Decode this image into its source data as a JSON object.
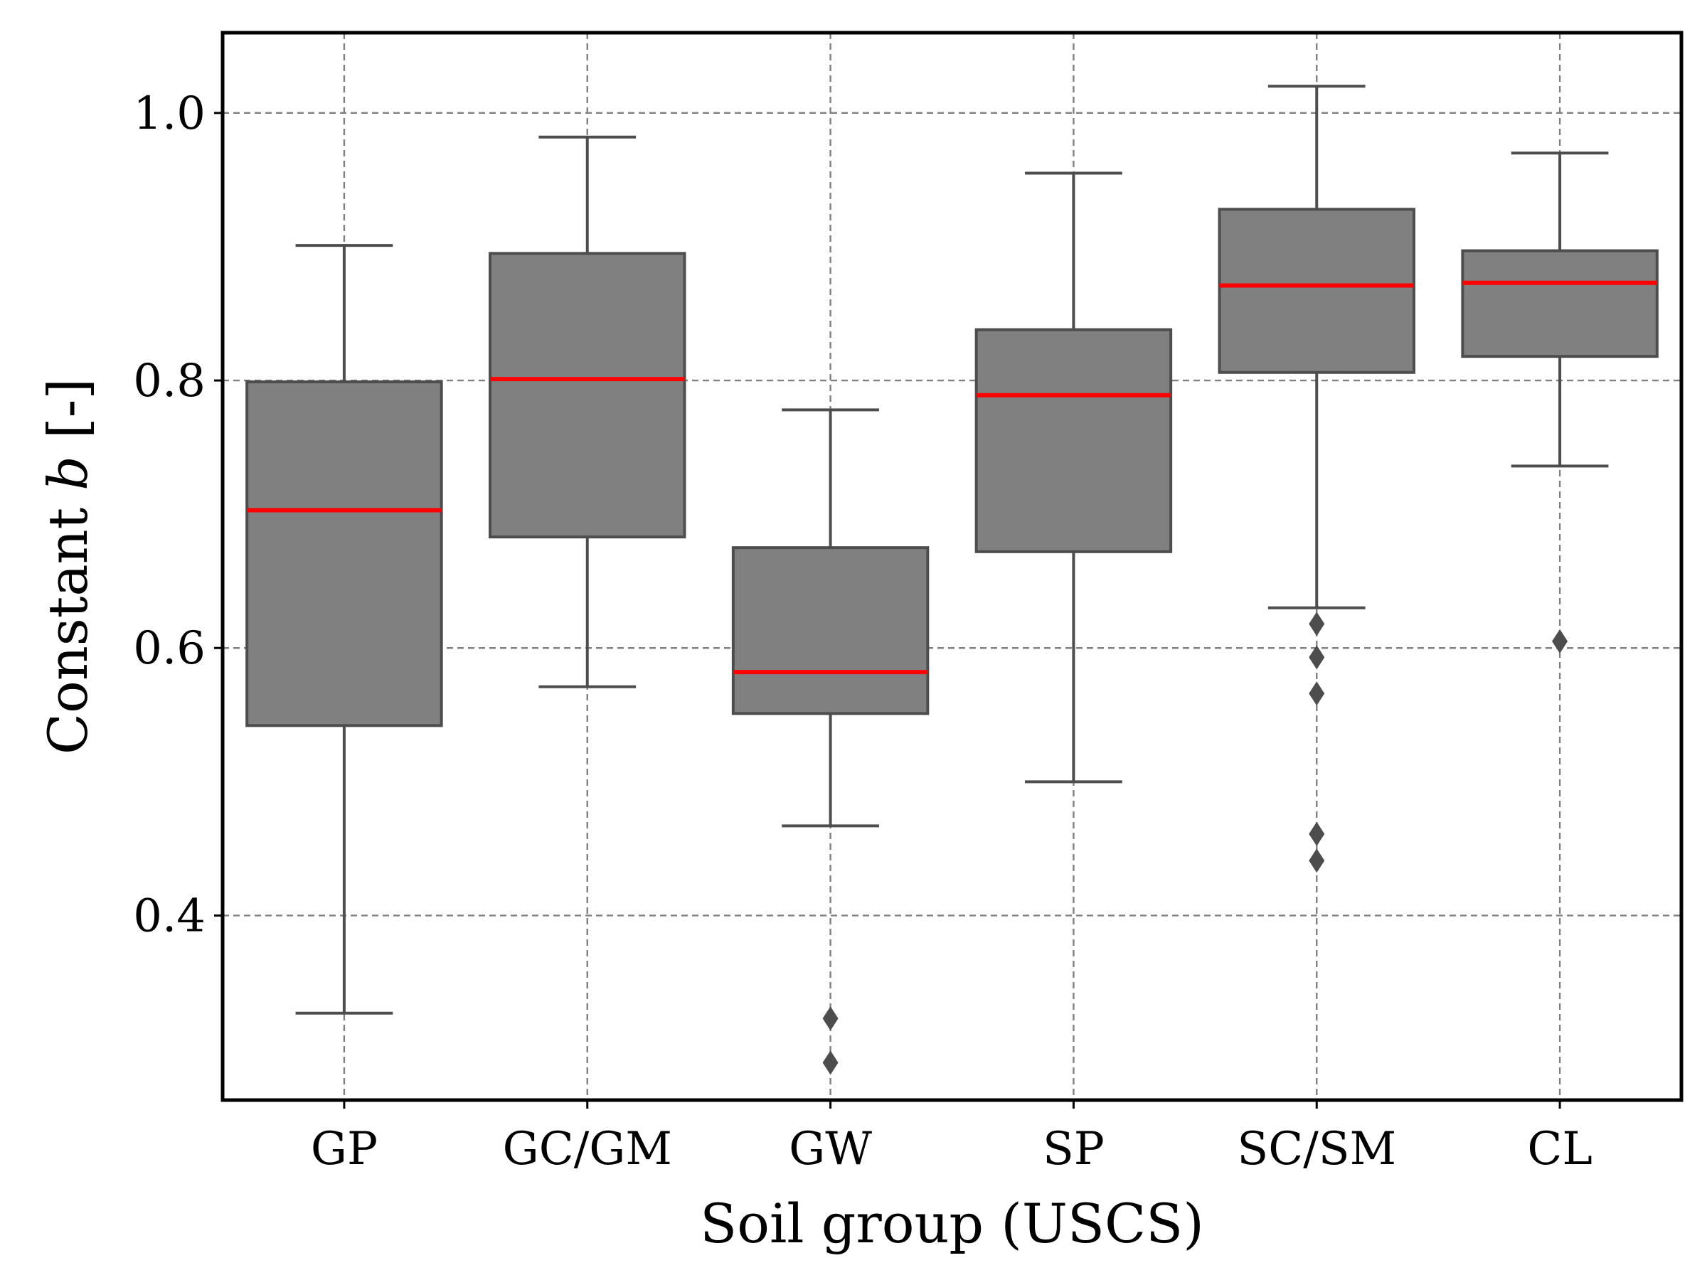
{
  "chart_data": {
    "type": "box",
    "xlabel": "Soil group (USCS)",
    "ylabel_prefix": "Constant ",
    "ylabel_var": "b",
    "ylabel_suffix": " [-]",
    "ylim": [
      0.262,
      1.06
    ],
    "yticks": [
      0.4,
      0.6,
      0.8,
      1.0
    ],
    "yticklabels": [
      "0.4",
      "0.6",
      "0.8",
      "1.0"
    ],
    "grid": true,
    "box_color": "#808080",
    "edge_color": "#4d4d4d",
    "median_color": "#ff0000",
    "categories": [
      "GP",
      "GC/GM",
      "GW",
      "SP",
      "SC/SM",
      "CL"
    ],
    "boxes": [
      {
        "category": "GP",
        "whisker_low": 0.327,
        "q1": 0.542,
        "median": 0.703,
        "q3": 0.799,
        "whisker_high": 0.901,
        "outliers": []
      },
      {
        "category": "GC/GM",
        "whisker_low": 0.571,
        "q1": 0.683,
        "median": 0.801,
        "q3": 0.895,
        "whisker_high": 0.982,
        "outliers": []
      },
      {
        "category": "GW",
        "whisker_low": 0.467,
        "q1": 0.551,
        "median": 0.582,
        "q3": 0.675,
        "whisker_high": 0.778,
        "outliers": [
          0.323,
          0.29
        ]
      },
      {
        "category": "SP",
        "whisker_low": 0.5,
        "q1": 0.672,
        "median": 0.789,
        "q3": 0.838,
        "whisker_high": 0.955,
        "outliers": []
      },
      {
        "category": "SC/SM",
        "whisker_low": 0.63,
        "q1": 0.806,
        "median": 0.871,
        "q3": 0.928,
        "whisker_high": 1.02,
        "outliers": [
          0.618,
          0.593,
          0.566,
          0.461,
          0.441
        ]
      },
      {
        "category": "CL",
        "whisker_low": 0.736,
        "q1": 0.818,
        "median": 0.873,
        "q3": 0.897,
        "whisker_high": 0.97,
        "outliers": [
          0.605
        ]
      }
    ]
  }
}
